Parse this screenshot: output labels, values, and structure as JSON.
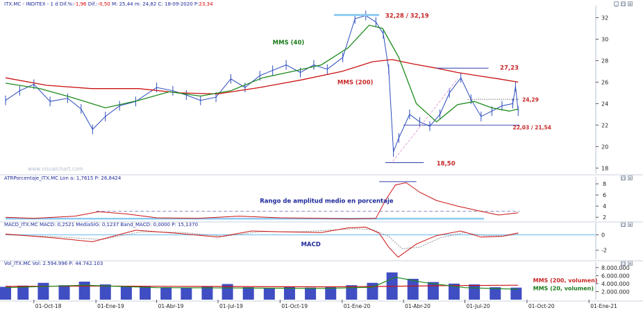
{
  "headers": {
    "price": {
      "left": "ITX.MC - INDITEX - 1 d  Dif.%:",
      "pct": "-1,96",
      "mid": " Dif.:",
      "diff": "-0,50",
      "right": "  M: 25,44  m: 24,82  C: 18-09-2020  P:",
      "last": "23,34"
    },
    "atr": "ATRPorcentaje_ITX.MC  Lon a: 1,7615  P: 26,8424",
    "macd": "MACD_ITX.MC  MACD: 0,2521  MediaSIG: 0,1237  Band_MACD: 0,0000  P: 15,1370",
    "vol": "Vol_ITX.MC  Vol: 2.594.996  P: 44.742.103"
  },
  "watermark": "www.visualchart.com",
  "annotations": {
    "mms40": "MMS (40)",
    "mms200": "MMS (200)",
    "top": "32,28 / 32,19",
    "resist": "27,23",
    "mid": "24,29",
    "support": "22,03 / 21,54",
    "low": "18,50",
    "atr_title": "Rango de amplitud medio en porcentaje",
    "macd_title": "MACD",
    "vol_ma200": "MMS (200, volumen)",
    "vol_ma20": "MMS (20, volumen)"
  },
  "colors": {
    "price": "#2b4bbd",
    "mms40": "#1a8a1a",
    "mms200": "#cc1111",
    "volume": "#1f2fb8",
    "header": "#1f2a9a",
    "annotation_red": "#c62828",
    "annotation_green": "#1b7a1b"
  },
  "chart_data": [
    {
      "type": "line",
      "panel": "price",
      "x_tick_labels": [
        "01-Oct-18",
        "01-Ene-19",
        "01-Abr-19",
        "01-Jul-19",
        "01-Oct-19",
        "01-Ene-20",
        "01-Abr-20",
        "01-Jul-20",
        "01-Oct-20",
        "01-Ene-21"
      ],
      "ylim": [
        17.5,
        33
      ],
      "y_ticks": [
        18,
        20,
        22,
        24,
        26,
        28,
        30,
        32
      ],
      "series": [
        {
          "name": "ITX.MC",
          "x": [
            "2018-08-20",
            "2018-09-10",
            "2018-10-01",
            "2018-10-25",
            "2018-11-20",
            "2018-12-10",
            "2018-12-27",
            "2019-01-15",
            "2019-02-05",
            "2019-03-01",
            "2019-04-01",
            "2019-04-25",
            "2019-05-15",
            "2019-06-05",
            "2019-06-28",
            "2019-07-20",
            "2019-08-10",
            "2019-09-01",
            "2019-09-20",
            "2019-10-10",
            "2019-10-31",
            "2019-11-20",
            "2019-12-10",
            "2020-01-02",
            "2020-01-20",
            "2020-02-05",
            "2020-02-20",
            "2020-03-02",
            "2020-03-10",
            "2020-03-17",
            "2020-03-25",
            "2020-04-10",
            "2020-04-25",
            "2020-05-10",
            "2020-05-25",
            "2020-06-08",
            "2020-06-25",
            "2020-07-10",
            "2020-07-25",
            "2020-08-10",
            "2020-08-25",
            "2020-09-10",
            "2020-09-14",
            "2020-09-18"
          ],
          "values": [
            24.3,
            25.2,
            25.8,
            24.2,
            24.5,
            23.5,
            21.6,
            22.8,
            23.8,
            24.2,
            25.5,
            25.2,
            24.8,
            24.3,
            24.6,
            26.3,
            25.5,
            26.6,
            27.1,
            27.6,
            26.9,
            27.6,
            27.2,
            28.3,
            31.9,
            32.2,
            31.6,
            30.5,
            27.2,
            19.5,
            20.8,
            23.0,
            22.3,
            21.9,
            23.0,
            25.0,
            26.4,
            24.4,
            22.8,
            23.3,
            23.8,
            24.0,
            25.6,
            23.3
          ]
        },
        {
          "name": "MMS (40)",
          "x": [
            "2018-08-20",
            "2018-10-10",
            "2018-11-25",
            "2019-01-15",
            "2019-03-05",
            "2019-04-20",
            "2019-06-05",
            "2019-07-20",
            "2019-09-05",
            "2019-10-20",
            "2019-12-01",
            "2020-01-10",
            "2020-02-10",
            "2020-03-01",
            "2020-03-25",
            "2020-04-20",
            "2020-05-20",
            "2020-06-20",
            "2020-07-15",
            "2020-08-10",
            "2020-09-05",
            "2020-09-18"
          ],
          "values": [
            25.9,
            25.4,
            24.6,
            23.6,
            24.3,
            25.1,
            24.7,
            25.2,
            26.4,
            27.0,
            27.6,
            29.2,
            31.3,
            31.0,
            28.3,
            24.0,
            22.3,
            23.9,
            24.2,
            23.6,
            23.3,
            23.5
          ]
        },
        {
          "name": "MMS (200)",
          "x": [
            "2018-08-20",
            "2018-10-20",
            "2018-12-25",
            "2019-03-05",
            "2019-05-05",
            "2019-07-01",
            "2019-09-01",
            "2019-11-01",
            "2020-01-01",
            "2020-02-15",
            "2020-03-15",
            "2020-04-15",
            "2020-05-20",
            "2020-06-20",
            "2020-07-20",
            "2020-08-20",
            "2020-09-18"
          ],
          "values": [
            26.4,
            25.7,
            25.4,
            25.4,
            25.0,
            24.9,
            25.5,
            26.2,
            27.0,
            27.9,
            28.1,
            27.7,
            27.3,
            26.9,
            26.6,
            26.3,
            26.0
          ]
        }
      ]
    },
    {
      "type": "line",
      "panel": "atr",
      "ylim": [
        1.4,
        9
      ],
      "y_ticks": [
        2,
        4,
        6,
        8
      ],
      "series": [
        {
          "name": "ATR %",
          "x": [
            "2018-08-20",
            "2018-10-01",
            "2018-12-01",
            "2019-01-05",
            "2019-02-15",
            "2019-04-01",
            "2019-06-01",
            "2019-08-01",
            "2019-10-01",
            "2019-12-01",
            "2020-01-15",
            "2020-02-20",
            "2020-03-05",
            "2020-03-20",
            "2020-04-05",
            "2020-04-25",
            "2020-05-20",
            "2020-06-20",
            "2020-07-20",
            "2020-08-20",
            "2020-09-18"
          ],
          "values": [
            2.0,
            1.8,
            2.2,
            3.0,
            2.6,
            1.9,
            1.8,
            2.2,
            1.9,
            1.8,
            1.7,
            1.8,
            5.0,
            7.8,
            8.2,
            6.5,
            5.0,
            4.0,
            3.2,
            2.4,
            2.8
          ]
        }
      ]
    },
    {
      "type": "line",
      "panel": "macd",
      "ylim": [
        -3.2,
        1.4
      ],
      "y_ticks": [
        -2,
        0
      ],
      "series": [
        {
          "name": "MACD",
          "x": [
            "2018-08-20",
            "2018-11-01",
            "2018-12-27",
            "2019-03-01",
            "2019-05-01",
            "2019-07-01",
            "2019-08-20",
            "2019-10-01",
            "2019-12-01",
            "2020-01-10",
            "2020-02-05",
            "2020-02-25",
            "2020-03-10",
            "2020-03-24",
            "2020-04-20",
            "2020-05-20",
            "2020-06-25",
            "2020-07-25",
            "2020-08-25",
            "2020-09-18"
          ],
          "values": [
            0.1,
            -0.4,
            -0.9,
            0.6,
            0.2,
            -0.3,
            0.5,
            0.4,
            0.3,
            0.9,
            1.0,
            0.2,
            -1.6,
            -2.9,
            -1.2,
            -0.1,
            0.5,
            -0.3,
            -0.2,
            0.25
          ]
        },
        {
          "name": "MediaSIG",
          "x": [
            "2018-08-20",
            "2018-11-10",
            "2019-01-10",
            "2019-03-10",
            "2019-05-10",
            "2019-07-10",
            "2019-09-01",
            "2019-11-01",
            "2020-01-20",
            "2020-02-15",
            "2020-03-10",
            "2020-03-30",
            "2020-04-25",
            "2020-05-25",
            "2020-06-30",
            "2020-07-30",
            "2020-08-30",
            "2020-09-18"
          ],
          "values": [
            0.0,
            -0.3,
            -0.6,
            0.4,
            0.3,
            -0.2,
            0.4,
            0.4,
            0.8,
            0.7,
            -0.2,
            -1.8,
            -1.6,
            -0.4,
            0.3,
            -0.1,
            -0.15,
            0.12
          ]
        }
      ]
    },
    {
      "type": "bar",
      "panel": "volume",
      "ylim": [
        0,
        9000000
      ],
      "y_ticks": [
        2000000,
        4000000,
        6000000,
        8000000
      ],
      "y_tick_labels": [
        "2.000.000",
        "4.000.000",
        "6.000.000",
        "8.000.000"
      ],
      "series": [
        {
          "name": "Volumen",
          "x": [
            "2018-08-20",
            "2018-09-15",
            "2018-10-15",
            "2018-11-15",
            "2018-12-15",
            "2019-01-15",
            "2019-02-15",
            "2019-03-15",
            "2019-04-15",
            "2019-05-15",
            "2019-06-15",
            "2019-07-15",
            "2019-08-15",
            "2019-09-15",
            "2019-10-15",
            "2019-11-15",
            "2019-12-15",
            "2020-01-15",
            "2020-02-15",
            "2020-03-15",
            "2020-04-15",
            "2020-05-15",
            "2020-06-15",
            "2020-07-15",
            "2020-08-15",
            "2020-09-15"
          ],
          "values": [
            3200000,
            3500000,
            4200000,
            3600000,
            4500000,
            3800000,
            3400000,
            3300000,
            3100000,
            3000000,
            3200000,
            3900000,
            3100000,
            2900000,
            3300000,
            3000000,
            3100000,
            3600000,
            4200000,
            6800000,
            5200000,
            4400000,
            4000000,
            3800000,
            3100000,
            3000000
          ]
        },
        {
          "name": "MMS (200, volumen)",
          "x": [
            "2018-08-20",
            "2019-01-01",
            "2019-06-01",
            "2019-12-01",
            "2020-03-01",
            "2020-06-01",
            "2020-09-18"
          ],
          "values": [
            3300000,
            3400000,
            3300000,
            3200000,
            3300000,
            3500000,
            3600000
          ]
        },
        {
          "name": "MMS (20, volumen)",
          "x": [
            "2018-08-20",
            "2018-12-15",
            "2019-04-01",
            "2019-08-01",
            "2019-12-01",
            "2020-02-15",
            "2020-03-20",
            "2020-05-01",
            "2020-07-01",
            "2020-09-18"
          ],
          "values": [
            3000000,
            3600000,
            3000000,
            2900000,
            2800000,
            3100000,
            5600000,
            4300000,
            3000000,
            2600000
          ]
        }
      ]
    }
  ]
}
